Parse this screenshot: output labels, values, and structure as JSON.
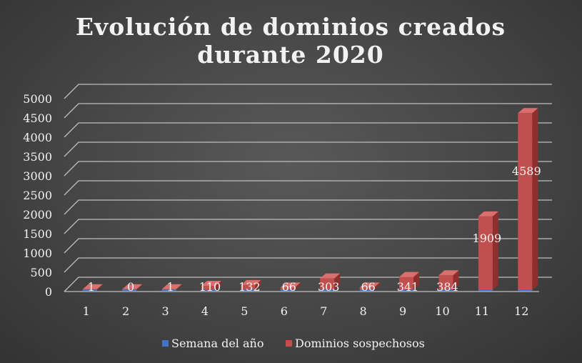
{
  "chart_data": {
    "type": "bar",
    "title_lines": [
      "Evolución de dominios creados",
      "durante 2020"
    ],
    "categories": [
      "1",
      "2",
      "3",
      "4",
      "5",
      "6",
      "7",
      "8",
      "9",
      "10",
      "11",
      "12"
    ],
    "series": [
      {
        "name": "Semana del año",
        "values": [
          1,
          2,
          3,
          4,
          5,
          6,
          7,
          8,
          9,
          10,
          11,
          12
        ],
        "color": "#4472c4"
      },
      {
        "name": "Dominios sospechosos",
        "values": [
          1,
          0,
          1,
          110,
          132,
          66,
          303,
          66,
          341,
          384,
          1909,
          4589
        ],
        "color": "#c0504d"
      }
    ],
    "data_labels": [
      "1",
      "0",
      "1",
      "110",
      "132",
      "66",
      "303",
      "66",
      "341",
      "384",
      "1909",
      "4589"
    ],
    "y_ticks": [
      "0",
      "500",
      "1000",
      "1500",
      "2000",
      "2500",
      "3000",
      "3500",
      "4000",
      "4500",
      "5000"
    ],
    "ylim": [
      0,
      5000
    ],
    "grid": true,
    "legend_position": "bottom",
    "style": "3d-column"
  }
}
